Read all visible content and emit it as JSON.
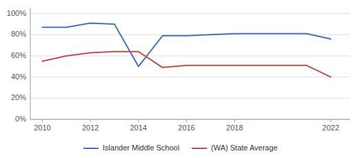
{
  "chart_data": {
    "type": "line",
    "x": [
      2010,
      2011,
      2012,
      2013,
      2014,
      2015,
      2016,
      2017,
      2018,
      2019,
      2020,
      2021,
      2022
    ],
    "series": [
      {
        "name": "Islander Middle School",
        "color": "#4472C4",
        "values": [
          0.87,
          0.87,
          0.91,
          0.9,
          0.5,
          0.79,
          0.79,
          0.8,
          0.81,
          0.81,
          0.81,
          0.81,
          0.76
        ]
      },
      {
        "name": "(WA) State Average",
        "color": "#C0504D",
        "values": [
          0.55,
          0.6,
          0.63,
          0.64,
          0.64,
          0.49,
          0.51,
          0.51,
          0.51,
          0.51,
          0.51,
          0.51,
          0.4
        ]
      }
    ],
    "xlim": [
      2009.5,
      2022.8
    ],
    "ylim": [
      0.0,
      1.05
    ],
    "xticks": [
      2010,
      2012,
      2014,
      2016,
      2018,
      2022
    ],
    "yticks": [
      {
        "value": 0.0,
        "label": "0%"
      },
      {
        "value": 0.2,
        "label": "20%"
      },
      {
        "value": 0.4,
        "label": "40%"
      },
      {
        "value": 0.6,
        "label": "60%"
      },
      {
        "value": 0.8,
        "label": "80%"
      },
      {
        "value": 1.0,
        "label": "100%"
      }
    ],
    "grid": true,
    "legend": "bottom"
  }
}
